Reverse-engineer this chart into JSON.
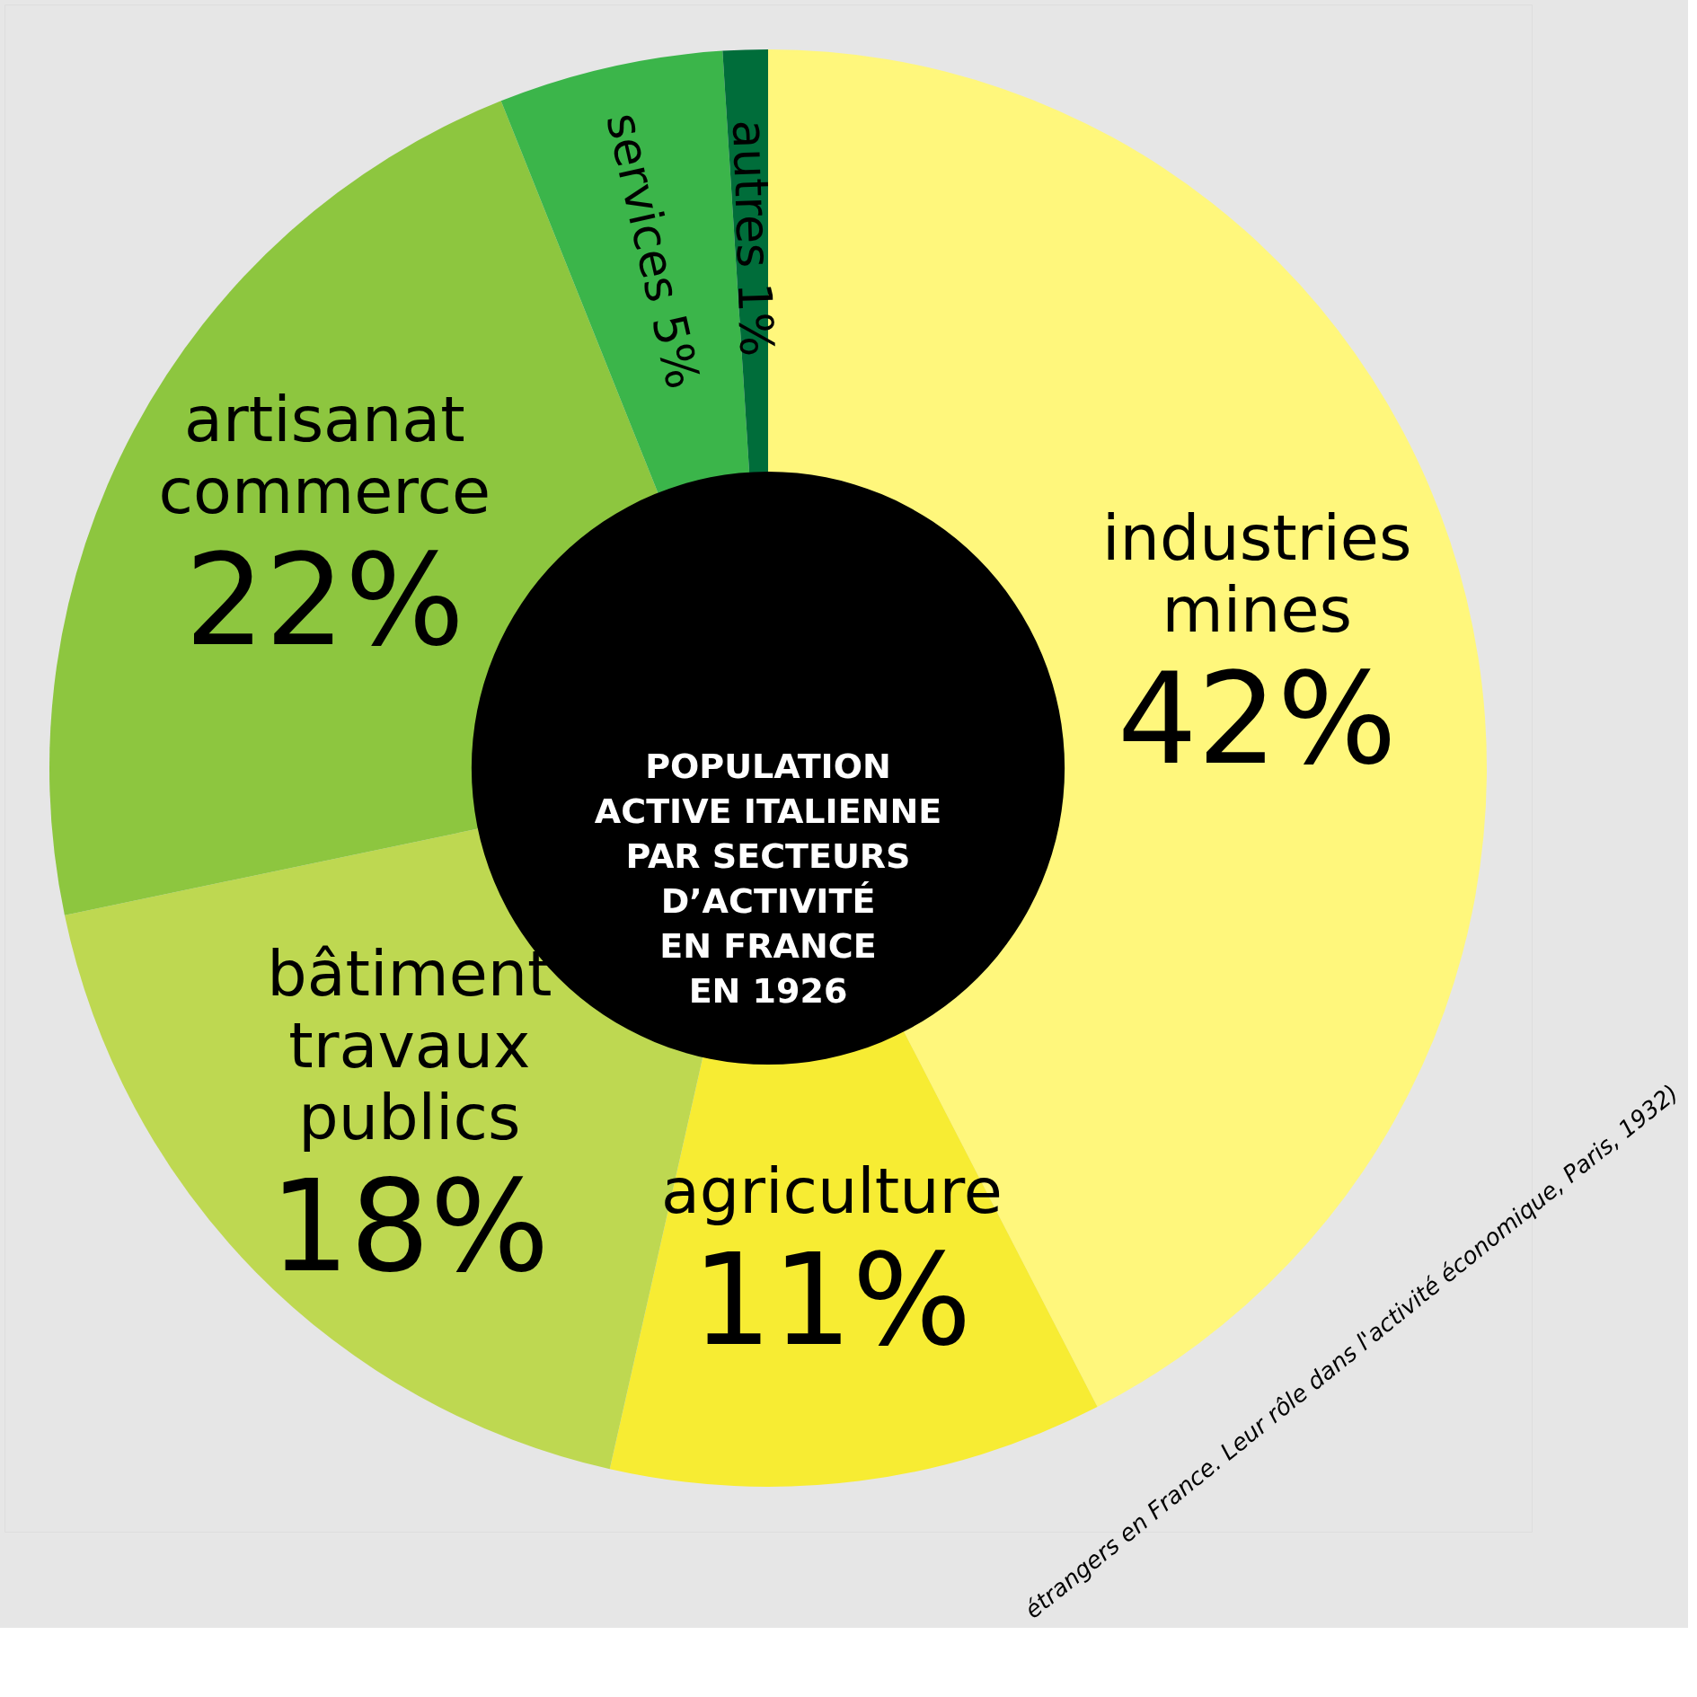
{
  "chart_data": {
    "type": "donut",
    "title": "POPULATION\nACTIVE ITALIENNE\nPAR SECTEURS\nD’ACTIVITÉ\nEN FRANCE\nEN 1926",
    "categories": [
      "industries\nmines",
      "agriculture",
      "bâtiment\ntravaux\npublics",
      "artisanat\ncommerce",
      "services",
      "autres"
    ],
    "values": [
      42,
      11,
      18,
      22,
      5,
      1
    ],
    "value_labels": [
      "42%",
      "11%",
      "18%",
      "22%",
      "5%",
      "1%"
    ],
    "colors": [
      "#fff77c",
      "#f7ec33",
      "#bed851",
      "#8dc63f",
      "#3bb54a",
      "#006d3a"
    ],
    "legend": false,
    "annotations": [
      "étrangers en France. Leur rôle dans l'activité économique, Paris, 1932)"
    ]
  }
}
